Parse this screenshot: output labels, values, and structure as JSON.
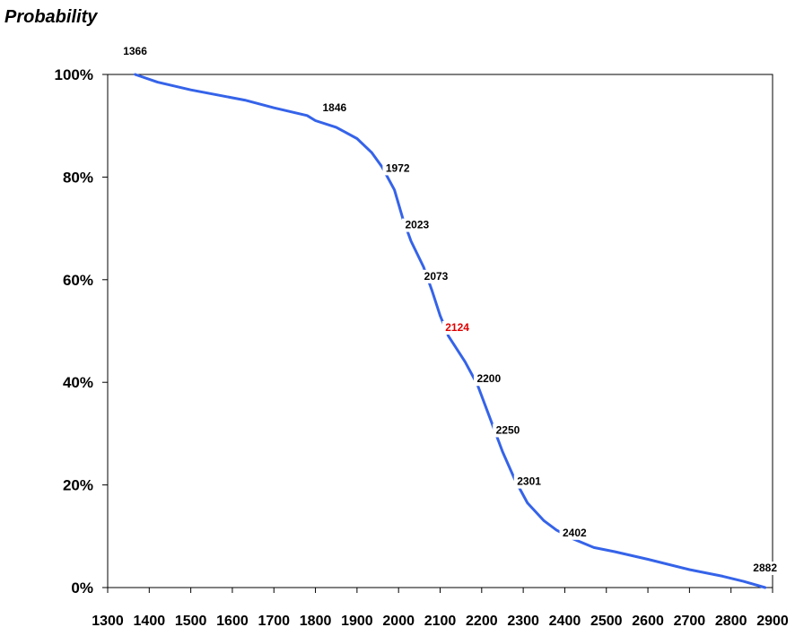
{
  "chart_data": {
    "type": "line",
    "title": "",
    "ylabel": "Probability",
    "xlabel": "",
    "xlim": [
      1300,
      2900
    ],
    "ylim": [
      0,
      1
    ],
    "x_ticks": [
      "1300",
      "1400",
      "1500",
      "1600",
      "1700",
      "1800",
      "1900",
      "2000",
      "2100",
      "2200",
      "2300",
      "2400",
      "2500",
      "2600",
      "2700",
      "2800",
      "2900"
    ],
    "y_ticks": [
      "0%",
      "20%",
      "40%",
      "60%",
      "80%",
      "100%"
    ],
    "grid": false,
    "legend": "none",
    "line_color": "#3563e9",
    "highlight_color": "#e00000",
    "series": [
      {
        "x": [
          1366,
          1420,
          1500,
          1630,
          1700,
          1780,
          1800,
          1850,
          1900,
          1935,
          1960,
          1990,
          2010,
          2030,
          2060,
          2080,
          2100,
          2120,
          2160,
          2190,
          2220,
          2250,
          2280,
          2310,
          2350,
          2380,
          2420,
          2470,
          2520,
          2600,
          2700,
          2780,
          2830,
          2882
        ],
        "y": [
          1.0,
          0.985,
          0.97,
          0.95,
          0.935,
          0.92,
          0.91,
          0.897,
          0.875,
          0.848,
          0.82,
          0.775,
          0.72,
          0.675,
          0.625,
          0.58,
          0.53,
          0.49,
          0.44,
          0.395,
          0.33,
          0.265,
          0.21,
          0.165,
          0.13,
          0.112,
          0.095,
          0.078,
          0.07,
          0.055,
          0.035,
          0.022,
          0.012,
          0.0
        ]
      }
    ],
    "annotations": [
      {
        "text": "1366",
        "x": 1366,
        "y": 1.0,
        "highlight": false
      },
      {
        "text": "1846",
        "x": 1846,
        "y": 0.897,
        "highlight": false
      },
      {
        "text": "1972",
        "x": 1972,
        "y": 0.8,
        "highlight": false
      },
      {
        "text": "2023",
        "x": 2023,
        "y": 0.7,
        "highlight": false
      },
      {
        "text": "2073",
        "x": 2073,
        "y": 0.6,
        "highlight": false
      },
      {
        "text": "2124",
        "x": 2124,
        "y": 0.5,
        "highlight": true
      },
      {
        "text": "2200",
        "x": 2200,
        "y": 0.4,
        "highlight": false
      },
      {
        "text": "2250",
        "x": 2250,
        "y": 0.3,
        "highlight": false
      },
      {
        "text": "2301",
        "x": 2301,
        "y": 0.2,
        "highlight": false
      },
      {
        "text": "2402",
        "x": 2402,
        "y": 0.1,
        "highlight": false
      },
      {
        "text": "2882",
        "x": 2882,
        "y": 0.0,
        "highlight": false
      }
    ]
  }
}
